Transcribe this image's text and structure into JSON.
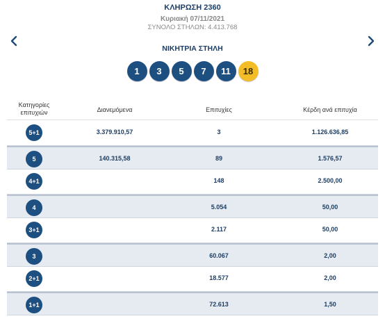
{
  "draw": {
    "title": "ΚΛΗΡΩΣΗ 2360",
    "date": "Κυριακή 07/11/2021",
    "total": "ΣΥΝΟΛΟ ΣΤΗΛΩΝ: 4.413.768"
  },
  "winning": {
    "title": "ΝΙΚΗΤΡΙΑ ΣΤΗΛΗ",
    "numbers": [
      "1",
      "3",
      "5",
      "7",
      "11"
    ],
    "bonus": "18",
    "colors": {
      "ball": "#1d4f80",
      "bonus": "#f3bd27"
    }
  },
  "nav": {
    "prev_icon": "chevron-left-icon",
    "next_icon": "chevron-right-icon"
  },
  "table": {
    "headers": {
      "category": "Κατηγορίες επιτυχιών",
      "distributed": "Διανεμόμενα",
      "winners": "Επιτυχίες",
      "prize": "Κέρδη ανά επιτυχία"
    },
    "rows": [
      {
        "category": "5+1",
        "distributed": "3.379.910,57",
        "winners": "3",
        "prize": "1.126.636,85"
      },
      {
        "category": "5",
        "distributed": "140.315,58",
        "winners": "89",
        "prize": "1.576,57"
      },
      {
        "category": "4+1",
        "distributed": "",
        "winners": "148",
        "prize": "2.500,00"
      },
      {
        "category": "4",
        "distributed": "",
        "winners": "5.054",
        "prize": "50,00"
      },
      {
        "category": "3+1",
        "distributed": "",
        "winners": "2.117",
        "prize": "50,00"
      },
      {
        "category": "3",
        "distributed": "",
        "winners": "60.067",
        "prize": "2,00"
      },
      {
        "category": "2+1",
        "distributed": "",
        "winners": "18.577",
        "prize": "2,00"
      },
      {
        "category": "1+1",
        "distributed": "",
        "winners": "72.613",
        "prize": "1,50"
      }
    ]
  }
}
